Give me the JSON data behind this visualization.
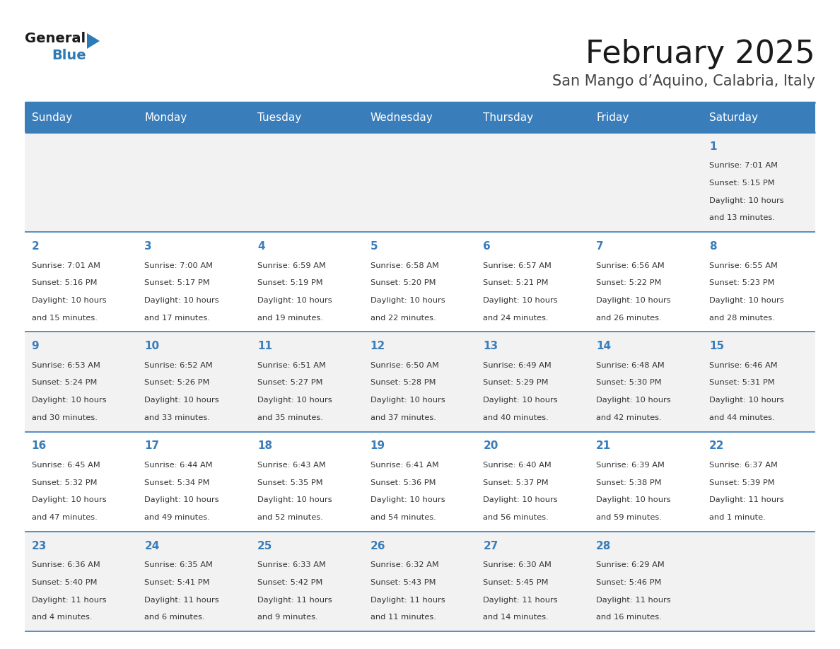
{
  "title": "February 2025",
  "subtitle": "San Mango d’Aquino, Calabria, Italy",
  "days_of_week": [
    "Sunday",
    "Monday",
    "Tuesday",
    "Wednesday",
    "Thursday",
    "Friday",
    "Saturday"
  ],
  "header_bg": "#3A7DBB",
  "header_text": "#FFFFFF",
  "cell_bg_odd": "#F2F2F2",
  "cell_bg_even": "#FFFFFF",
  "separator_color": "#3A7DBB",
  "day_text_color": "#3A7DBB",
  "info_text_color": "#333333",
  "title_color": "#1a1a1a",
  "subtitle_color": "#444444",
  "logo_general_color": "#1a1a1a",
  "logo_blue_color": "#2C7BB6",
  "logo_triangle_color": "#2C7BB6",
  "calendar_data": [
    {
      "day": 1,
      "col": 6,
      "row": 0,
      "sunrise": "7:01 AM",
      "sunset": "5:15 PM",
      "daylight": "10 hours and 13 minutes."
    },
    {
      "day": 2,
      "col": 0,
      "row": 1,
      "sunrise": "7:01 AM",
      "sunset": "5:16 PM",
      "daylight": "10 hours and 15 minutes."
    },
    {
      "day": 3,
      "col": 1,
      "row": 1,
      "sunrise": "7:00 AM",
      "sunset": "5:17 PM",
      "daylight": "10 hours and 17 minutes."
    },
    {
      "day": 4,
      "col": 2,
      "row": 1,
      "sunrise": "6:59 AM",
      "sunset": "5:19 PM",
      "daylight": "10 hours and 19 minutes."
    },
    {
      "day": 5,
      "col": 3,
      "row": 1,
      "sunrise": "6:58 AM",
      "sunset": "5:20 PM",
      "daylight": "10 hours and 22 minutes."
    },
    {
      "day": 6,
      "col": 4,
      "row": 1,
      "sunrise": "6:57 AM",
      "sunset": "5:21 PM",
      "daylight": "10 hours and 24 minutes."
    },
    {
      "day": 7,
      "col": 5,
      "row": 1,
      "sunrise": "6:56 AM",
      "sunset": "5:22 PM",
      "daylight": "10 hours and 26 minutes."
    },
    {
      "day": 8,
      "col": 6,
      "row": 1,
      "sunrise": "6:55 AM",
      "sunset": "5:23 PM",
      "daylight": "10 hours and 28 minutes."
    },
    {
      "day": 9,
      "col": 0,
      "row": 2,
      "sunrise": "6:53 AM",
      "sunset": "5:24 PM",
      "daylight": "10 hours and 30 minutes."
    },
    {
      "day": 10,
      "col": 1,
      "row": 2,
      "sunrise": "6:52 AM",
      "sunset": "5:26 PM",
      "daylight": "10 hours and 33 minutes."
    },
    {
      "day": 11,
      "col": 2,
      "row": 2,
      "sunrise": "6:51 AM",
      "sunset": "5:27 PM",
      "daylight": "10 hours and 35 minutes."
    },
    {
      "day": 12,
      "col": 3,
      "row": 2,
      "sunrise": "6:50 AM",
      "sunset": "5:28 PM",
      "daylight": "10 hours and 37 minutes."
    },
    {
      "day": 13,
      "col": 4,
      "row": 2,
      "sunrise": "6:49 AM",
      "sunset": "5:29 PM",
      "daylight": "10 hours and 40 minutes."
    },
    {
      "day": 14,
      "col": 5,
      "row": 2,
      "sunrise": "6:48 AM",
      "sunset": "5:30 PM",
      "daylight": "10 hours and 42 minutes."
    },
    {
      "day": 15,
      "col": 6,
      "row": 2,
      "sunrise": "6:46 AM",
      "sunset": "5:31 PM",
      "daylight": "10 hours and 44 minutes."
    },
    {
      "day": 16,
      "col": 0,
      "row": 3,
      "sunrise": "6:45 AM",
      "sunset": "5:32 PM",
      "daylight": "10 hours and 47 minutes."
    },
    {
      "day": 17,
      "col": 1,
      "row": 3,
      "sunrise": "6:44 AM",
      "sunset": "5:34 PM",
      "daylight": "10 hours and 49 minutes."
    },
    {
      "day": 18,
      "col": 2,
      "row": 3,
      "sunrise": "6:43 AM",
      "sunset": "5:35 PM",
      "daylight": "10 hours and 52 minutes."
    },
    {
      "day": 19,
      "col": 3,
      "row": 3,
      "sunrise": "6:41 AM",
      "sunset": "5:36 PM",
      "daylight": "10 hours and 54 minutes."
    },
    {
      "day": 20,
      "col": 4,
      "row": 3,
      "sunrise": "6:40 AM",
      "sunset": "5:37 PM",
      "daylight": "10 hours and 56 minutes."
    },
    {
      "day": 21,
      "col": 5,
      "row": 3,
      "sunrise": "6:39 AM",
      "sunset": "5:38 PM",
      "daylight": "10 hours and 59 minutes."
    },
    {
      "day": 22,
      "col": 6,
      "row": 3,
      "sunrise": "6:37 AM",
      "sunset": "5:39 PM",
      "daylight": "11 hours and 1 minute."
    },
    {
      "day": 23,
      "col": 0,
      "row": 4,
      "sunrise": "6:36 AM",
      "sunset": "5:40 PM",
      "daylight": "11 hours and 4 minutes."
    },
    {
      "day": 24,
      "col": 1,
      "row": 4,
      "sunrise": "6:35 AM",
      "sunset": "5:41 PM",
      "daylight": "11 hours and 6 minutes."
    },
    {
      "day": 25,
      "col": 2,
      "row": 4,
      "sunrise": "6:33 AM",
      "sunset": "5:42 PM",
      "daylight": "11 hours and 9 minutes."
    },
    {
      "day": 26,
      "col": 3,
      "row": 4,
      "sunrise": "6:32 AM",
      "sunset": "5:43 PM",
      "daylight": "11 hours and 11 minutes."
    },
    {
      "day": 27,
      "col": 4,
      "row": 4,
      "sunrise": "6:30 AM",
      "sunset": "5:45 PM",
      "daylight": "11 hours and 14 minutes."
    },
    {
      "day": 28,
      "col": 5,
      "row": 4,
      "sunrise": "6:29 AM",
      "sunset": "5:46 PM",
      "daylight": "11 hours and 16 minutes."
    }
  ],
  "num_rows": 5,
  "num_cols": 7,
  "fig_width": 11.88,
  "fig_height": 9.18,
  "dpi": 100
}
